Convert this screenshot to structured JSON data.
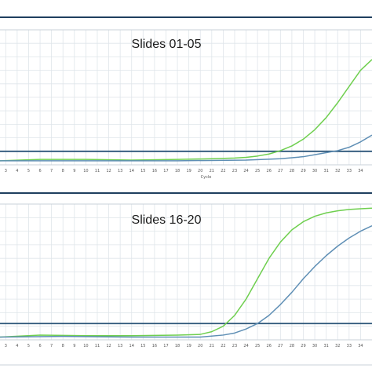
{
  "colors": {
    "grid": "#dfe5ea",
    "frame": "#1f3f5f",
    "threshold": "#2a5478",
    "green": "#6fcf4f",
    "blue": "#5f8fb5",
    "panel_border": "#c9d2da"
  },
  "chart_data": [
    {
      "type": "line",
      "title": "Slides 01-05",
      "xlabel": "Cycle",
      "ylabel": "",
      "x_ticks": [
        3,
        4,
        5,
        6,
        7,
        8,
        9,
        10,
        11,
        12,
        13,
        14,
        15,
        16,
        17,
        18,
        19,
        20,
        21,
        22,
        23,
        24,
        25,
        26,
        27,
        28,
        29,
        30,
        31,
        32,
        33,
        34
      ],
      "xlim": [
        2.5,
        35.0
      ],
      "ylim": [
        0,
        1
      ],
      "grid": true,
      "threshold": 0.1,
      "series": [
        {
          "color": "green",
          "x": [
            2.5,
            6,
            10,
            14,
            18,
            21,
            23,
            24,
            25,
            26,
            27,
            28,
            29,
            30,
            31,
            32,
            33,
            34,
            35
          ],
          "y": [
            0.03,
            0.04,
            0.04,
            0.035,
            0.04,
            0.045,
            0.05,
            0.055,
            0.065,
            0.08,
            0.105,
            0.14,
            0.19,
            0.26,
            0.35,
            0.46,
            0.58,
            0.7,
            0.78
          ]
        },
        {
          "color": "blue",
          "x": [
            2.5,
            10,
            18,
            24,
            27,
            29,
            30,
            31,
            32,
            33,
            34,
            35
          ],
          "y": [
            0.03,
            0.03,
            0.03,
            0.035,
            0.045,
            0.06,
            0.075,
            0.09,
            0.105,
            0.13,
            0.17,
            0.22
          ]
        }
      ]
    },
    {
      "type": "line",
      "title": "Slides 16-20",
      "xlabel": "",
      "ylabel": "",
      "x_ticks": [
        3,
        4,
        5,
        6,
        7,
        8,
        9,
        10,
        11,
        12,
        13,
        14,
        15,
        16,
        17,
        18,
        19,
        20,
        21,
        22,
        23,
        24,
        25,
        26,
        27,
        28,
        29,
        30,
        31,
        32,
        33,
        34
      ],
      "xlim": [
        2.5,
        35.0
      ],
      "ylim": [
        0,
        1
      ],
      "grid": true,
      "threshold": 0.12,
      "series": [
        {
          "color": "green",
          "x": [
            2.5,
            6,
            10,
            14,
            18,
            20,
            21,
            22,
            23,
            24,
            25,
            26,
            27,
            28,
            29,
            30,
            31,
            32,
            33,
            34,
            35
          ],
          "y": [
            0.02,
            0.035,
            0.03,
            0.03,
            0.035,
            0.04,
            0.06,
            0.1,
            0.18,
            0.3,
            0.45,
            0.6,
            0.72,
            0.81,
            0.87,
            0.91,
            0.935,
            0.95,
            0.96,
            0.965,
            0.97
          ]
        },
        {
          "color": "blue",
          "x": [
            2.5,
            8,
            14,
            20,
            22,
            23,
            24,
            25,
            26,
            27,
            28,
            29,
            30,
            31,
            32,
            33,
            34,
            35
          ],
          "y": [
            0.02,
            0.025,
            0.02,
            0.02,
            0.035,
            0.05,
            0.08,
            0.12,
            0.18,
            0.26,
            0.35,
            0.45,
            0.54,
            0.62,
            0.69,
            0.75,
            0.8,
            0.84
          ]
        }
      ]
    }
  ]
}
